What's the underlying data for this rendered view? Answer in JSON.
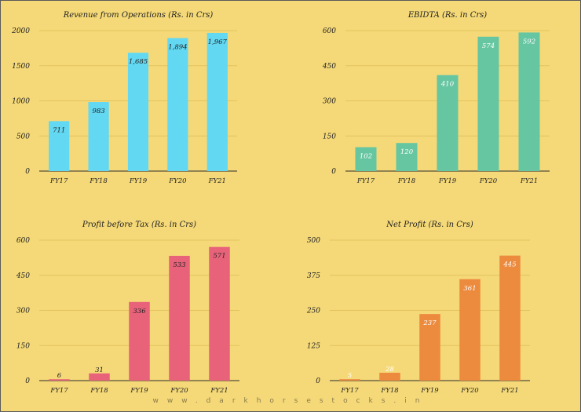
{
  "chart_data": [
    {
      "type": "bar",
      "title": "Revenue from Operations (Rs. in Crs)",
      "categories": [
        "FY17",
        "FY18",
        "FY19",
        "FY20",
        "FY21"
      ],
      "values": [
        711,
        983,
        1685,
        1894,
        1967
      ],
      "value_labels": [
        "711",
        "983",
        "1,685",
        "1,894",
        "1,967"
      ],
      "yticks": [
        0,
        500,
        1000,
        1500,
        2000
      ],
      "ylim": [
        0,
        2000
      ],
      "color": "#63d8f2",
      "label_color": "#222222",
      "grid": true
    },
    {
      "type": "bar",
      "title": "EBIDTA (Rs. in Crs)",
      "categories": [
        "FY17",
        "FY18",
        "FY19",
        "FY20",
        "FY21"
      ],
      "values": [
        102,
        120,
        410,
        574,
        592
      ],
      "value_labels": [
        "102",
        "120",
        "410",
        "574",
        "592"
      ],
      "yticks": [
        0,
        150,
        300,
        450,
        600
      ],
      "ylim": [
        0,
        600
      ],
      "color": "#67c6a2",
      "label_color": "#ffffff",
      "grid": true
    },
    {
      "type": "bar",
      "title": "Profit before Tax (Rs. in Crs)",
      "categories": [
        "FY17",
        "FY18",
        "FY19",
        "FY20",
        "FY21"
      ],
      "values": [
        6,
        31,
        336,
        533,
        571
      ],
      "value_labels": [
        "6",
        "31",
        "336",
        "533",
        "571"
      ],
      "yticks": [
        0,
        150,
        300,
        450,
        600
      ],
      "ylim": [
        0,
        600
      ],
      "color": "#e8637a",
      "label_color": "#222222",
      "grid": true
    },
    {
      "type": "bar",
      "title": "Net Profit (Rs. in Crs)",
      "categories": [
        "FY17",
        "FY18",
        "FY19",
        "FY20",
        "FY21"
      ],
      "values": [
        5,
        28,
        237,
        361,
        445
      ],
      "value_labels": [
        "5",
        "28",
        "237",
        "361",
        "445"
      ],
      "yticks": [
        0,
        125,
        250,
        375,
        500
      ],
      "ylim": [
        0,
        500
      ],
      "color": "#ec8a3e",
      "label_color": "#ffffff",
      "grid": true
    }
  ],
  "watermark": "www.darkhorsestocks.in"
}
